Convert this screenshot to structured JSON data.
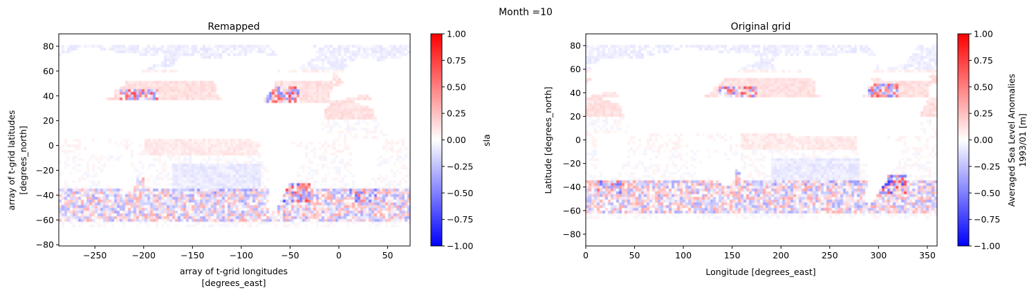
{
  "figure": {
    "suptitle": "Month =10"
  },
  "chart_data": [
    {
      "type": "heatmap",
      "title": "Remapped",
      "xlabel_lines": [
        "array of t-grid longitudes",
        "[degrees_east]"
      ],
      "ylabel_lines": [
        "array of t-grid latitudes",
        "[degrees_north]"
      ],
      "xlim": [
        -287,
        73
      ],
      "ylim": [
        -81,
        90
      ],
      "xticks": [
        -250,
        -200,
        -150,
        -100,
        -50,
        0,
        50
      ],
      "yticks": [
        -80,
        -60,
        -40,
        -20,
        0,
        20,
        40,
        60,
        80
      ],
      "lon_offset": -287,
      "colorbar": {
        "label_lines": [
          "sla"
        ],
        "range": [
          -1.0,
          1.0
        ],
        "ticks": [
          "1.00",
          "0.75",
          "0.50",
          "0.25",
          "0.00",
          "−0.25",
          "−0.50",
          "−0.75",
          "−1.00"
        ],
        "tick_values": [
          1.0,
          0.75,
          0.5,
          0.25,
          0.0,
          -0.25,
          -0.5,
          -0.75,
          -1.0
        ],
        "colormap": "bwr",
        "low_color": "#0000ff",
        "mid_color": "#ffffff",
        "high_color": "#ff0000"
      }
    },
    {
      "type": "heatmap",
      "title": "Original grid",
      "xlabel_lines": [
        "Longitude [degrees_east]"
      ],
      "ylabel_lines": [
        "Latitude [degrees_north]"
      ],
      "xlim": [
        0,
        360
      ],
      "ylim": [
        -90,
        90
      ],
      "xticks": [
        0,
        50,
        100,
        150,
        200,
        250,
        300,
        350
      ],
      "yticks": [
        -80,
        -60,
        -40,
        -20,
        0,
        20,
        40,
        60,
        80
      ],
      "lon_offset": 0,
      "colorbar": {
        "label_lines": [
          "Averaged Sea Level Anomalies",
          "1993/01 [m]"
        ],
        "range": [
          -1.0,
          1.0
        ],
        "ticks": [
          "1.00",
          "0.75",
          "0.50",
          "0.25",
          "0.00",
          "−0.25",
          "−0.50",
          "−0.75",
          "−1.00"
        ],
        "tick_values": [
          1.0,
          0.75,
          0.5,
          0.25,
          0.0,
          -0.25,
          -0.5,
          -0.75,
          -1.0
        ],
        "colormap": "bwr",
        "low_color": "#0000ff",
        "mid_color": "#ffffff",
        "high_color": "#ff0000"
      }
    }
  ]
}
